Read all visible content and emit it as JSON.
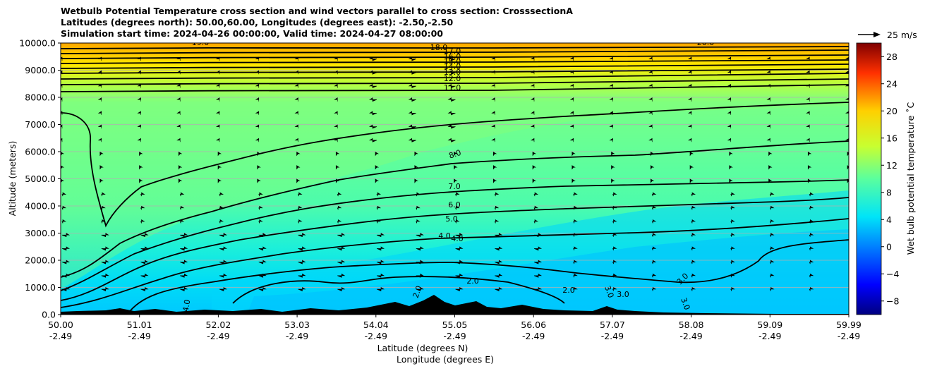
{
  "chart_data": {
    "type": "heatmap",
    "title_lines": [
      "Wetbulb Potential Temperature cross section and wind vectors parallel to cross section: CrosssectionA",
      "Latitudes (degrees north): 50.00,60.00, Longitudes (degrees east): -2.50,-2.50",
      "Simulation start time: 2024-04-26 00:00:00, Valid time: 2024-04-27 08:00:00"
    ],
    "ylabel": "Altitude (meters)",
    "xlabel": "Latitude (degrees N)",
    "xlabel2": "Longitude (degrees E)",
    "ylim": [
      0,
      10000
    ],
    "y_ticks": [
      "0.0",
      "1000.0",
      "2000.0",
      "3000.0",
      "4000.0",
      "5000.0",
      "6000.0",
      "7000.0",
      "8000.0",
      "9000.0",
      "10000.0"
    ],
    "x_lat_ticks": [
      "50.00",
      "51.01",
      "52.02",
      "53.03",
      "54.04",
      "55.05",
      "56.06",
      "57.07",
      "58.08",
      "59.09",
      "59.99"
    ],
    "x_lon_ticks": [
      "-2.49",
      "-2.49",
      "-2.49",
      "-2.49",
      "-2.49",
      "-2.49",
      "-2.49",
      "-2.49",
      "-2.49",
      "-2.49",
      "-2.49"
    ],
    "grid": "horizontal",
    "colorbar": {
      "label": "Wet bulb potential temperature ˚C",
      "range": [
        -10,
        30
      ],
      "ticks": [
        "−8",
        "−4",
        "0",
        "4",
        "8",
        "12",
        "16",
        "20",
        "24",
        "28"
      ],
      "colormap": "jet"
    },
    "quiver_key": "25 m/s",
    "contour_labels": [
      "2.0",
      "3.0",
      "4.0",
      "5.0",
      "6.0",
      "7.0",
      "8.0",
      "11.0",
      "12.0",
      "13.0",
      "14.0",
      "15.0",
      "16.0",
      "17.0",
      "18.0",
      "19.0",
      "20.0"
    ]
  }
}
